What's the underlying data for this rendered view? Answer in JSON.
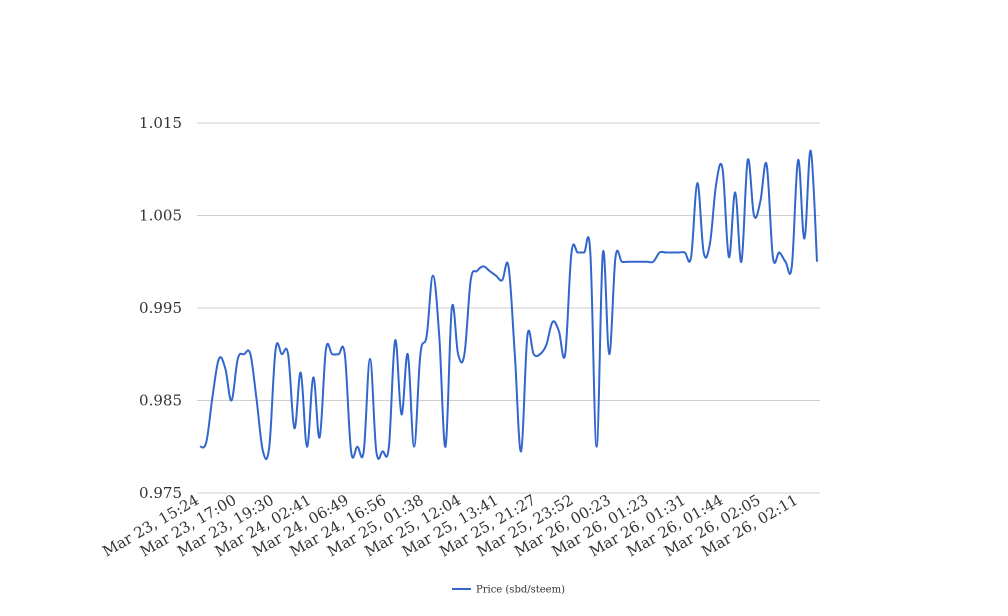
{
  "chart_data": {
    "type": "line",
    "title": "",
    "xlabel": "",
    "ylabel": "",
    "ylim": [
      0.975,
      1.015
    ],
    "yticks": [
      0.975,
      0.985,
      0.995,
      1.005,
      1.015
    ],
    "ytick_labels": [
      "0.975",
      "0.985",
      "0.995",
      "1.005",
      "1.015"
    ],
    "grid": true,
    "legend_position": "bottom",
    "x_tick_labels": [
      "Mar 23, 15:24",
      "Mar 23, 17:00",
      "Mar 23, 19:30",
      "Mar 24, 02:41",
      "Mar 24, 06:49",
      "Mar 24, 16:56",
      "Mar 25, 01:38",
      "Mar 25, 12:04",
      "Mar 25, 13:41",
      "Mar 25, 21:27",
      "Mar 25, 23:52",
      "Mar 26, 00:23",
      "Mar 26, 01:23",
      "Mar 26, 01:31",
      "Mar 26, 01:44",
      "Mar 26, 02:05",
      "Mar 26, 02:11"
    ],
    "colors": {
      "series": "#3366cc",
      "grid": "#cfcfcf"
    },
    "series": [
      {
        "name": "Price (sbd/steem)",
        "values": [
          0.98,
          0.9805,
          0.9855,
          0.9895,
          0.9885,
          0.985,
          0.9895,
          0.99,
          0.99,
          0.985,
          0.9795,
          0.98,
          0.9905,
          0.99,
          0.99,
          0.982,
          0.988,
          0.98,
          0.9875,
          0.981,
          0.9905,
          0.99,
          0.99,
          0.99,
          0.9795,
          0.98,
          0.9795,
          0.9895,
          0.9795,
          0.9795,
          0.98,
          0.9915,
          0.9835,
          0.99,
          0.98,
          0.99,
          0.992,
          0.9985,
          0.992,
          0.98,
          0.995,
          0.99,
          0.99,
          0.998,
          0.999,
          0.9995,
          0.999,
          0.9985,
          0.998,
          0.9995,
          0.99,
          0.9795,
          0.992,
          0.99,
          0.99,
          0.991,
          0.9935,
          0.9925,
          0.99,
          1.001,
          1.001,
          1.001,
          1.001,
          0.98,
          1.001,
          0.99,
          1.0005,
          1.0,
          1.0,
          1.0,
          1.0,
          1.0,
          1.0,
          1.001,
          1.001,
          1.001,
          1.001,
          1.001,
          1.0005,
          1.0085,
          1.001,
          1.002,
          1.0085,
          1.01,
          1.0005,
          1.0075,
          1.0,
          1.011,
          1.005,
          1.0065,
          1.0105,
          1.0005,
          1.001,
          1.0,
          0.9995,
          1.011,
          1.0025,
          1.012,
          1.0
        ]
      }
    ]
  }
}
